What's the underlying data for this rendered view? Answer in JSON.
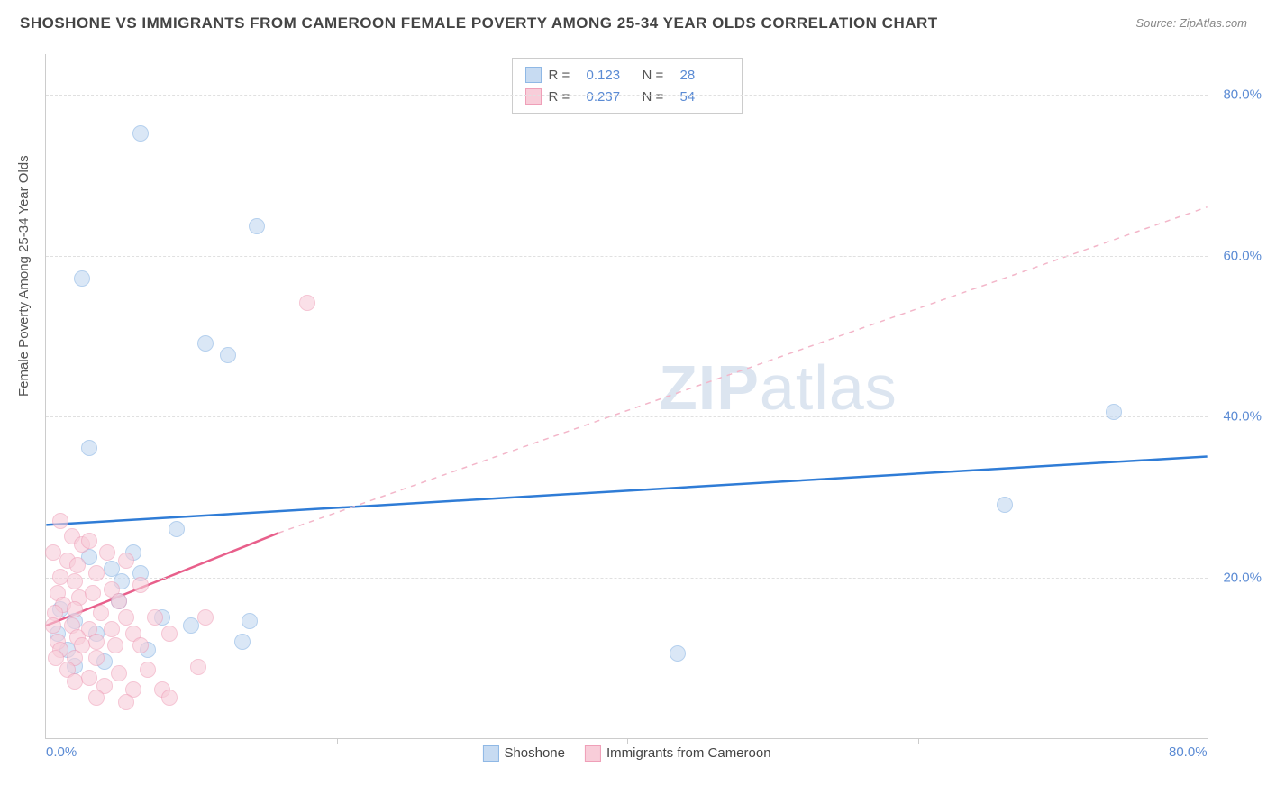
{
  "title": "SHOSHONE VS IMMIGRANTS FROM CAMEROON FEMALE POVERTY AMONG 25-34 YEAR OLDS CORRELATION CHART",
  "source": "Source: ZipAtlas.com",
  "ylabel": "Female Poverty Among 25-34 Year Olds",
  "watermark": {
    "zip": "ZIP",
    "atlas": "atlas"
  },
  "chart": {
    "type": "scatter",
    "xlim": [
      0,
      80
    ],
    "ylim": [
      0,
      85
    ],
    "xtick_labels": [
      {
        "pos": 0,
        "label": "0.0%"
      },
      {
        "pos": 80,
        "label": "80.0%"
      }
    ],
    "xticks_minor": [
      20,
      40,
      60
    ],
    "ytick_labels": [
      {
        "pos": 20,
        "label": "20.0%"
      },
      {
        "pos": 40,
        "label": "40.0%"
      },
      {
        "pos": 60,
        "label": "60.0%"
      },
      {
        "pos": 80,
        "label": "80.0%"
      }
    ],
    "grid_color": "#e0e0e0",
    "axis_color": "#cccccc",
    "tick_label_color": "#5b8bd4",
    "background_color": "#ffffff",
    "series": [
      {
        "name": "Shoshone",
        "fill": "#c7dbf2",
        "stroke": "#8fb8e5",
        "fill_opacity": 0.65,
        "marker_r": 9,
        "R": "0.123",
        "N": "28",
        "trend": {
          "x1": 0,
          "y1": 26.5,
          "x2": 80,
          "y2": 35,
          "color": "#2f7cd6",
          "dash": false,
          "width": 2.5
        },
        "points": [
          [
            6.5,
            75
          ],
          [
            14.5,
            63.5
          ],
          [
            2.5,
            57
          ],
          [
            11,
            49
          ],
          [
            12.5,
            47.5
          ],
          [
            73.5,
            40.5
          ],
          [
            3,
            36
          ],
          [
            66,
            29
          ],
          [
            9,
            26
          ],
          [
            43.5,
            10.5
          ],
          [
            3,
            22.5
          ],
          [
            4.5,
            21
          ],
          [
            6.5,
            20.5
          ],
          [
            14,
            14.5
          ],
          [
            5,
            17
          ],
          [
            2,
            14.5
          ],
          [
            7,
            11
          ],
          [
            4,
            9.5
          ],
          [
            3.5,
            13
          ],
          [
            2,
            9
          ],
          [
            1,
            16
          ],
          [
            0.8,
            13
          ],
          [
            5.2,
            19.5
          ],
          [
            6,
            23
          ],
          [
            1.5,
            11
          ],
          [
            8,
            15
          ],
          [
            10,
            14
          ],
          [
            13.5,
            12
          ]
        ]
      },
      {
        "name": "Immigrants from Cameroon",
        "fill": "#f8cdd9",
        "stroke": "#ef9fb8",
        "fill_opacity": 0.6,
        "marker_r": 9,
        "R": "0.237",
        "N": "54",
        "trend_solid": {
          "x1": 0,
          "y1": 14,
          "x2": 16,
          "y2": 25.5,
          "color": "#e85f8b",
          "dash": false,
          "width": 2.5
        },
        "trend_dash": {
          "x1": 16,
          "y1": 25.5,
          "x2": 80,
          "y2": 66,
          "color": "#f3b6c9",
          "dash": true,
          "width": 1.5
        },
        "points": [
          [
            18,
            54
          ],
          [
            1,
            27
          ],
          [
            1.8,
            25
          ],
          [
            2.5,
            24
          ],
          [
            3,
            24.5
          ],
          [
            0.5,
            23
          ],
          [
            1.5,
            22
          ],
          [
            4.2,
            23
          ],
          [
            2.2,
            21.5
          ],
          [
            5.5,
            22
          ],
          [
            1,
            20
          ],
          [
            2,
            19.5
          ],
          [
            3.5,
            20.5
          ],
          [
            4.5,
            18.5
          ],
          [
            6.5,
            19
          ],
          [
            0.8,
            18
          ],
          [
            2.3,
            17.5
          ],
          [
            3.2,
            18
          ],
          [
            5,
            17
          ],
          [
            1.2,
            16.5
          ],
          [
            0.6,
            15.5
          ],
          [
            2,
            16
          ],
          [
            3.8,
            15.5
          ],
          [
            5.5,
            15
          ],
          [
            7.5,
            15
          ],
          [
            11,
            15
          ],
          [
            0.5,
            14
          ],
          [
            1.8,
            14
          ],
          [
            3,
            13.5
          ],
          [
            4.5,
            13.5
          ],
          [
            6,
            13
          ],
          [
            8.5,
            13
          ],
          [
            0.8,
            12
          ],
          [
            2.2,
            12.5
          ],
          [
            3.5,
            12
          ],
          [
            1,
            11
          ],
          [
            2.5,
            11.5
          ],
          [
            4.8,
            11.5
          ],
          [
            6.5,
            11.5
          ],
          [
            0.7,
            10
          ],
          [
            2,
            10
          ],
          [
            3.5,
            10
          ],
          [
            5,
            8
          ],
          [
            7,
            8.5
          ],
          [
            10.5,
            8.8
          ],
          [
            1.5,
            8.5
          ],
          [
            3,
            7.5
          ],
          [
            2,
            7
          ],
          [
            4,
            6.5
          ],
          [
            6,
            6
          ],
          [
            8,
            6
          ],
          [
            3.5,
            5
          ],
          [
            5.5,
            4.5
          ],
          [
            8.5,
            5
          ]
        ]
      }
    ],
    "legend_top": [
      {
        "fill": "#c7dbf2",
        "stroke": "#8fb8e5",
        "r_label": "R =",
        "r_val": "0.123",
        "n_label": "N =",
        "n_val": "28"
      },
      {
        "fill": "#f8cdd9",
        "stroke": "#ef9fb8",
        "r_label": "R =",
        "r_val": "0.237",
        "n_label": "N =",
        "n_val": "54"
      }
    ],
    "legend_bottom": [
      {
        "fill": "#c7dbf2",
        "stroke": "#8fb8e5",
        "label": "Shoshone"
      },
      {
        "fill": "#f8cdd9",
        "stroke": "#ef9fb8",
        "label": "Immigrants from Cameroon"
      }
    ]
  }
}
